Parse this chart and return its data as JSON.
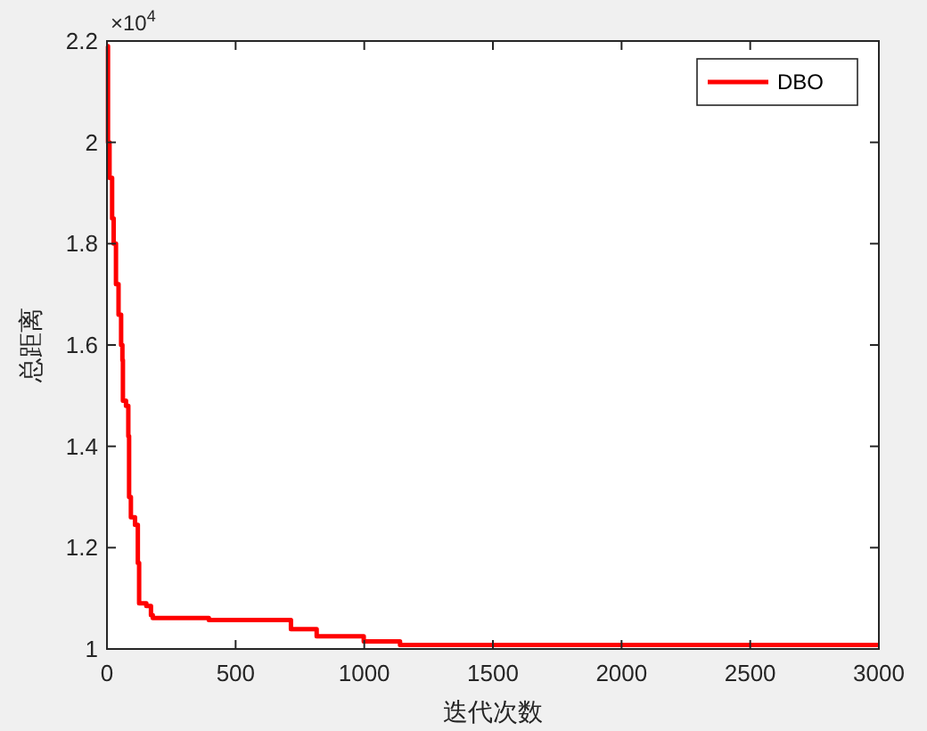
{
  "chart_data": {
    "type": "step",
    "xlabel": "迭代次数",
    "ylabel": "总距离",
    "annotations": [
      "×10$^{4}$"
    ],
    "xlim": [
      0,
      3000
    ],
    "xticks": [
      0,
      500,
      1000,
      1500,
      2000,
      2500,
      3000
    ],
    "ylim": [
      1,
      2.2
    ],
    "yticks": [
      1,
      1.2,
      1.4,
      1.6,
      1.8,
      2,
      2.2
    ],
    "grid": false,
    "legend": "top right",
    "marker": "none",
    "line_style": "solid",
    "series": [
      {
        "name": "DBO",
        "color": "#ff0000",
        "x": [
          0,
          4,
          10,
          20,
          26,
          35,
          45,
          55,
          60,
          62,
          74,
          83,
          86,
          93,
          109,
          120,
          125,
          153,
          171,
          178,
          396,
          715,
          815,
          998,
          1139,
          3000
        ],
        "values": [
          2.19,
          2.0,
          1.93,
          1.85,
          1.8,
          1.72,
          1.66,
          1.6,
          1.57,
          1.49,
          1.48,
          1.42,
          1.3,
          1.26,
          1.245,
          1.17,
          1.09,
          1.085,
          1.067,
          1.061,
          1.057,
          1.039,
          1.025,
          1.015,
          1.008,
          1.008
        ]
      }
    ]
  }
}
